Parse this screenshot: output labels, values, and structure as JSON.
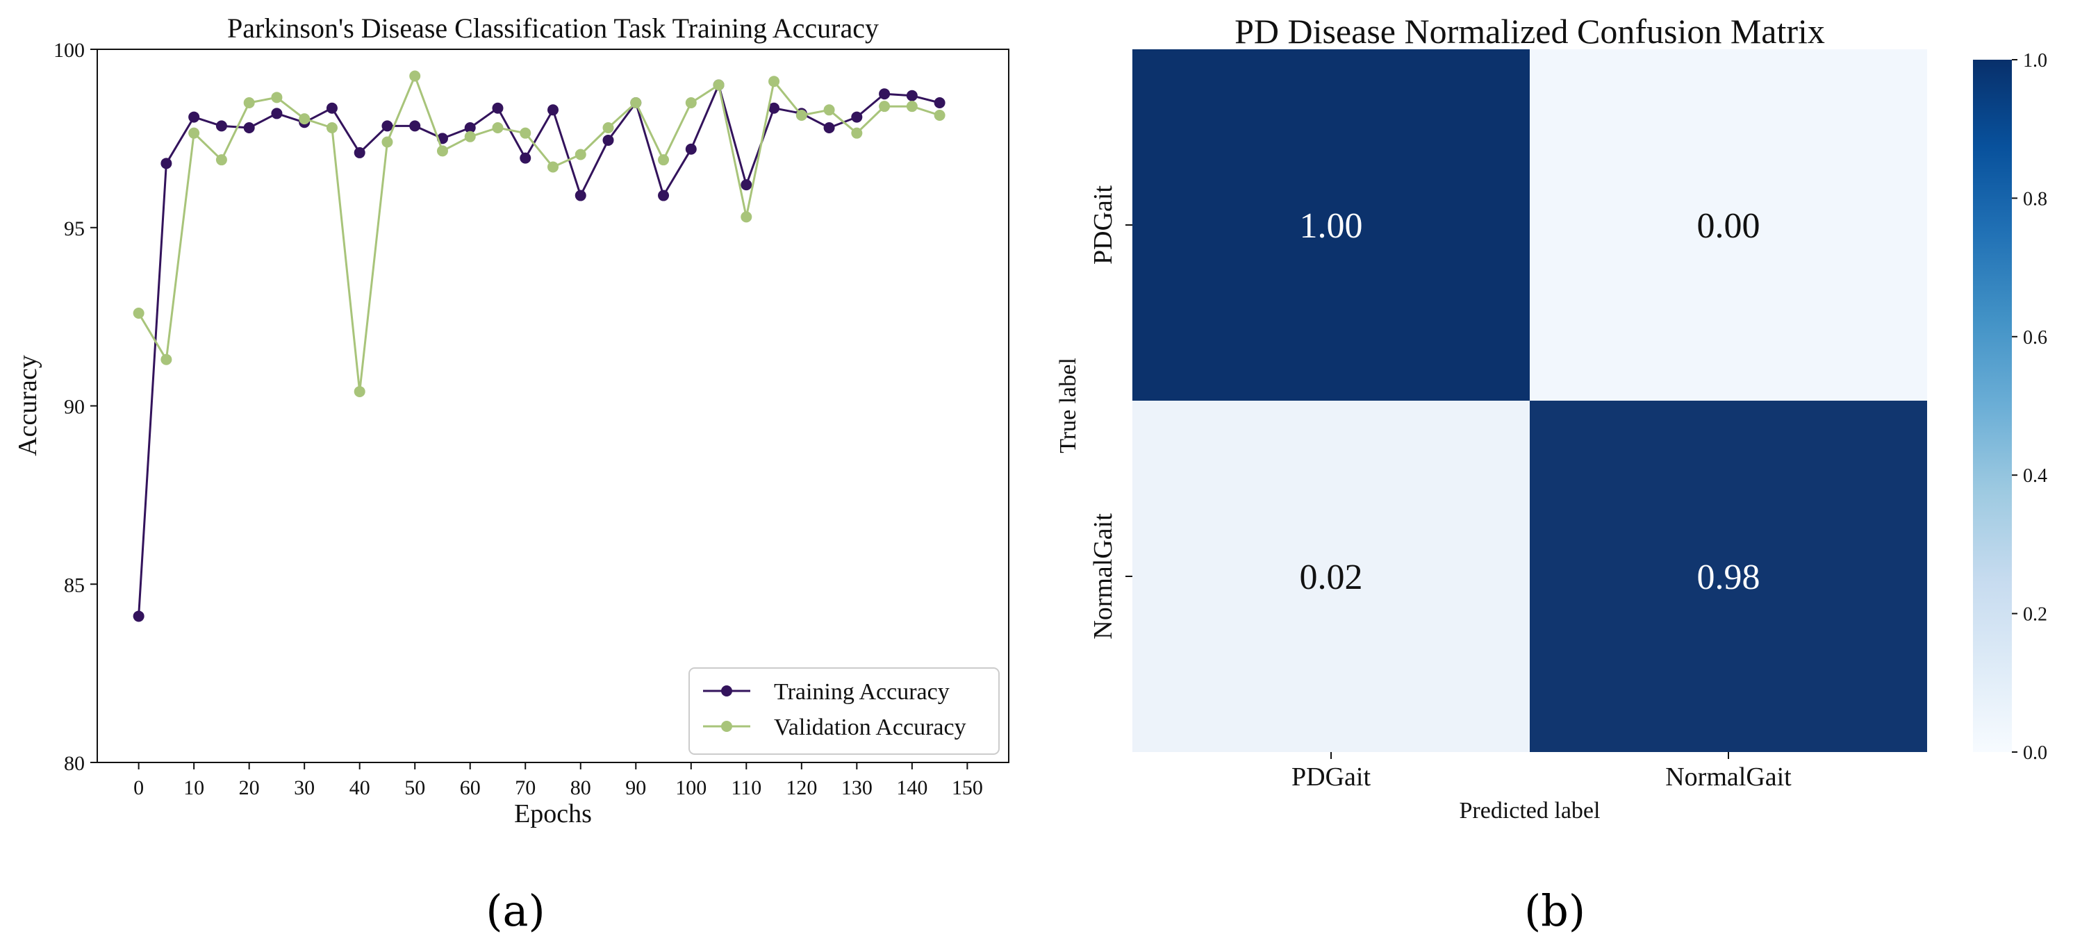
{
  "panels": [
    {
      "label": "(a)"
    },
    {
      "label": "(b)"
    }
  ],
  "chart_data": [
    {
      "type": "line",
      "title": "Parkinson's  Disease Classification Task Training Accuracy",
      "xlabel": "Epochs",
      "ylabel": "Accuracy",
      "xlim": [
        -7.5,
        157.5
      ],
      "ylim": [
        80,
        100
      ],
      "xticks": [
        0,
        10,
        20,
        30,
        40,
        50,
        60,
        70,
        80,
        90,
        100,
        110,
        120,
        130,
        140,
        150
      ],
      "yticks": [
        80,
        85,
        90,
        95,
        100
      ],
      "x": [
        0,
        5,
        10,
        15,
        20,
        25,
        30,
        35,
        40,
        45,
        50,
        55,
        60,
        65,
        70,
        75,
        80,
        85,
        90,
        95,
        100,
        105,
        110,
        115,
        120,
        125,
        130,
        135,
        140,
        145
      ],
      "series": [
        {
          "name": "Training Accuracy",
          "color": "#33135c",
          "values": [
            84.1,
            96.8,
            98.1,
            97.85,
            97.8,
            98.2,
            97.95,
            98.35,
            97.1,
            97.85,
            97.85,
            97.5,
            97.8,
            98.35,
            96.95,
            98.3,
            95.9,
            97.45,
            98.5,
            95.9,
            97.2,
            99.0,
            96.2,
            98.35,
            98.2,
            97.8,
            98.1,
            98.75,
            98.7,
            98.5
          ]
        },
        {
          "name": "Validation Accuracy",
          "color": "#a8c47a",
          "values": [
            92.6,
            91.3,
            97.65,
            96.9,
            98.5,
            98.65,
            98.05,
            97.8,
            90.4,
            97.4,
            99.25,
            97.15,
            97.55,
            97.8,
            97.65,
            96.7,
            97.05,
            97.8,
            98.5,
            96.9,
            98.5,
            99.0,
            95.3,
            99.1,
            98.15,
            98.3,
            97.65,
            98.4,
            98.4,
            98.15
          ]
        }
      ],
      "legend": "lower-right"
    },
    {
      "type": "heatmap",
      "title": "PD Disease Normalized Confusion Matrix",
      "xlabel": "Predicted label",
      "ylabel": "True label",
      "x_categories": [
        "PDGait",
        "NormalGait"
      ],
      "y_categories": [
        "PDGait",
        "NormalGait"
      ],
      "values": [
        [
          1.0,
          0.0
        ],
        [
          0.02,
          0.98
        ]
      ],
      "cell_labels": [
        [
          "1.00",
          "0.00"
        ],
        [
          "0.02",
          "0.98"
        ]
      ],
      "colorbar": {
        "range": [
          0.0,
          1.0
        ],
        "ticks": [
          0.0,
          0.2,
          0.4,
          0.6,
          0.8,
          1.0
        ],
        "tick_labels": [
          "0.0",
          "0.2",
          "0.4",
          "0.6",
          "0.8",
          "1.0"
        ],
        "colormap": "Blues",
        "low_color": "#f2f7fd",
        "high_color": "#0c326c"
      }
    }
  ]
}
